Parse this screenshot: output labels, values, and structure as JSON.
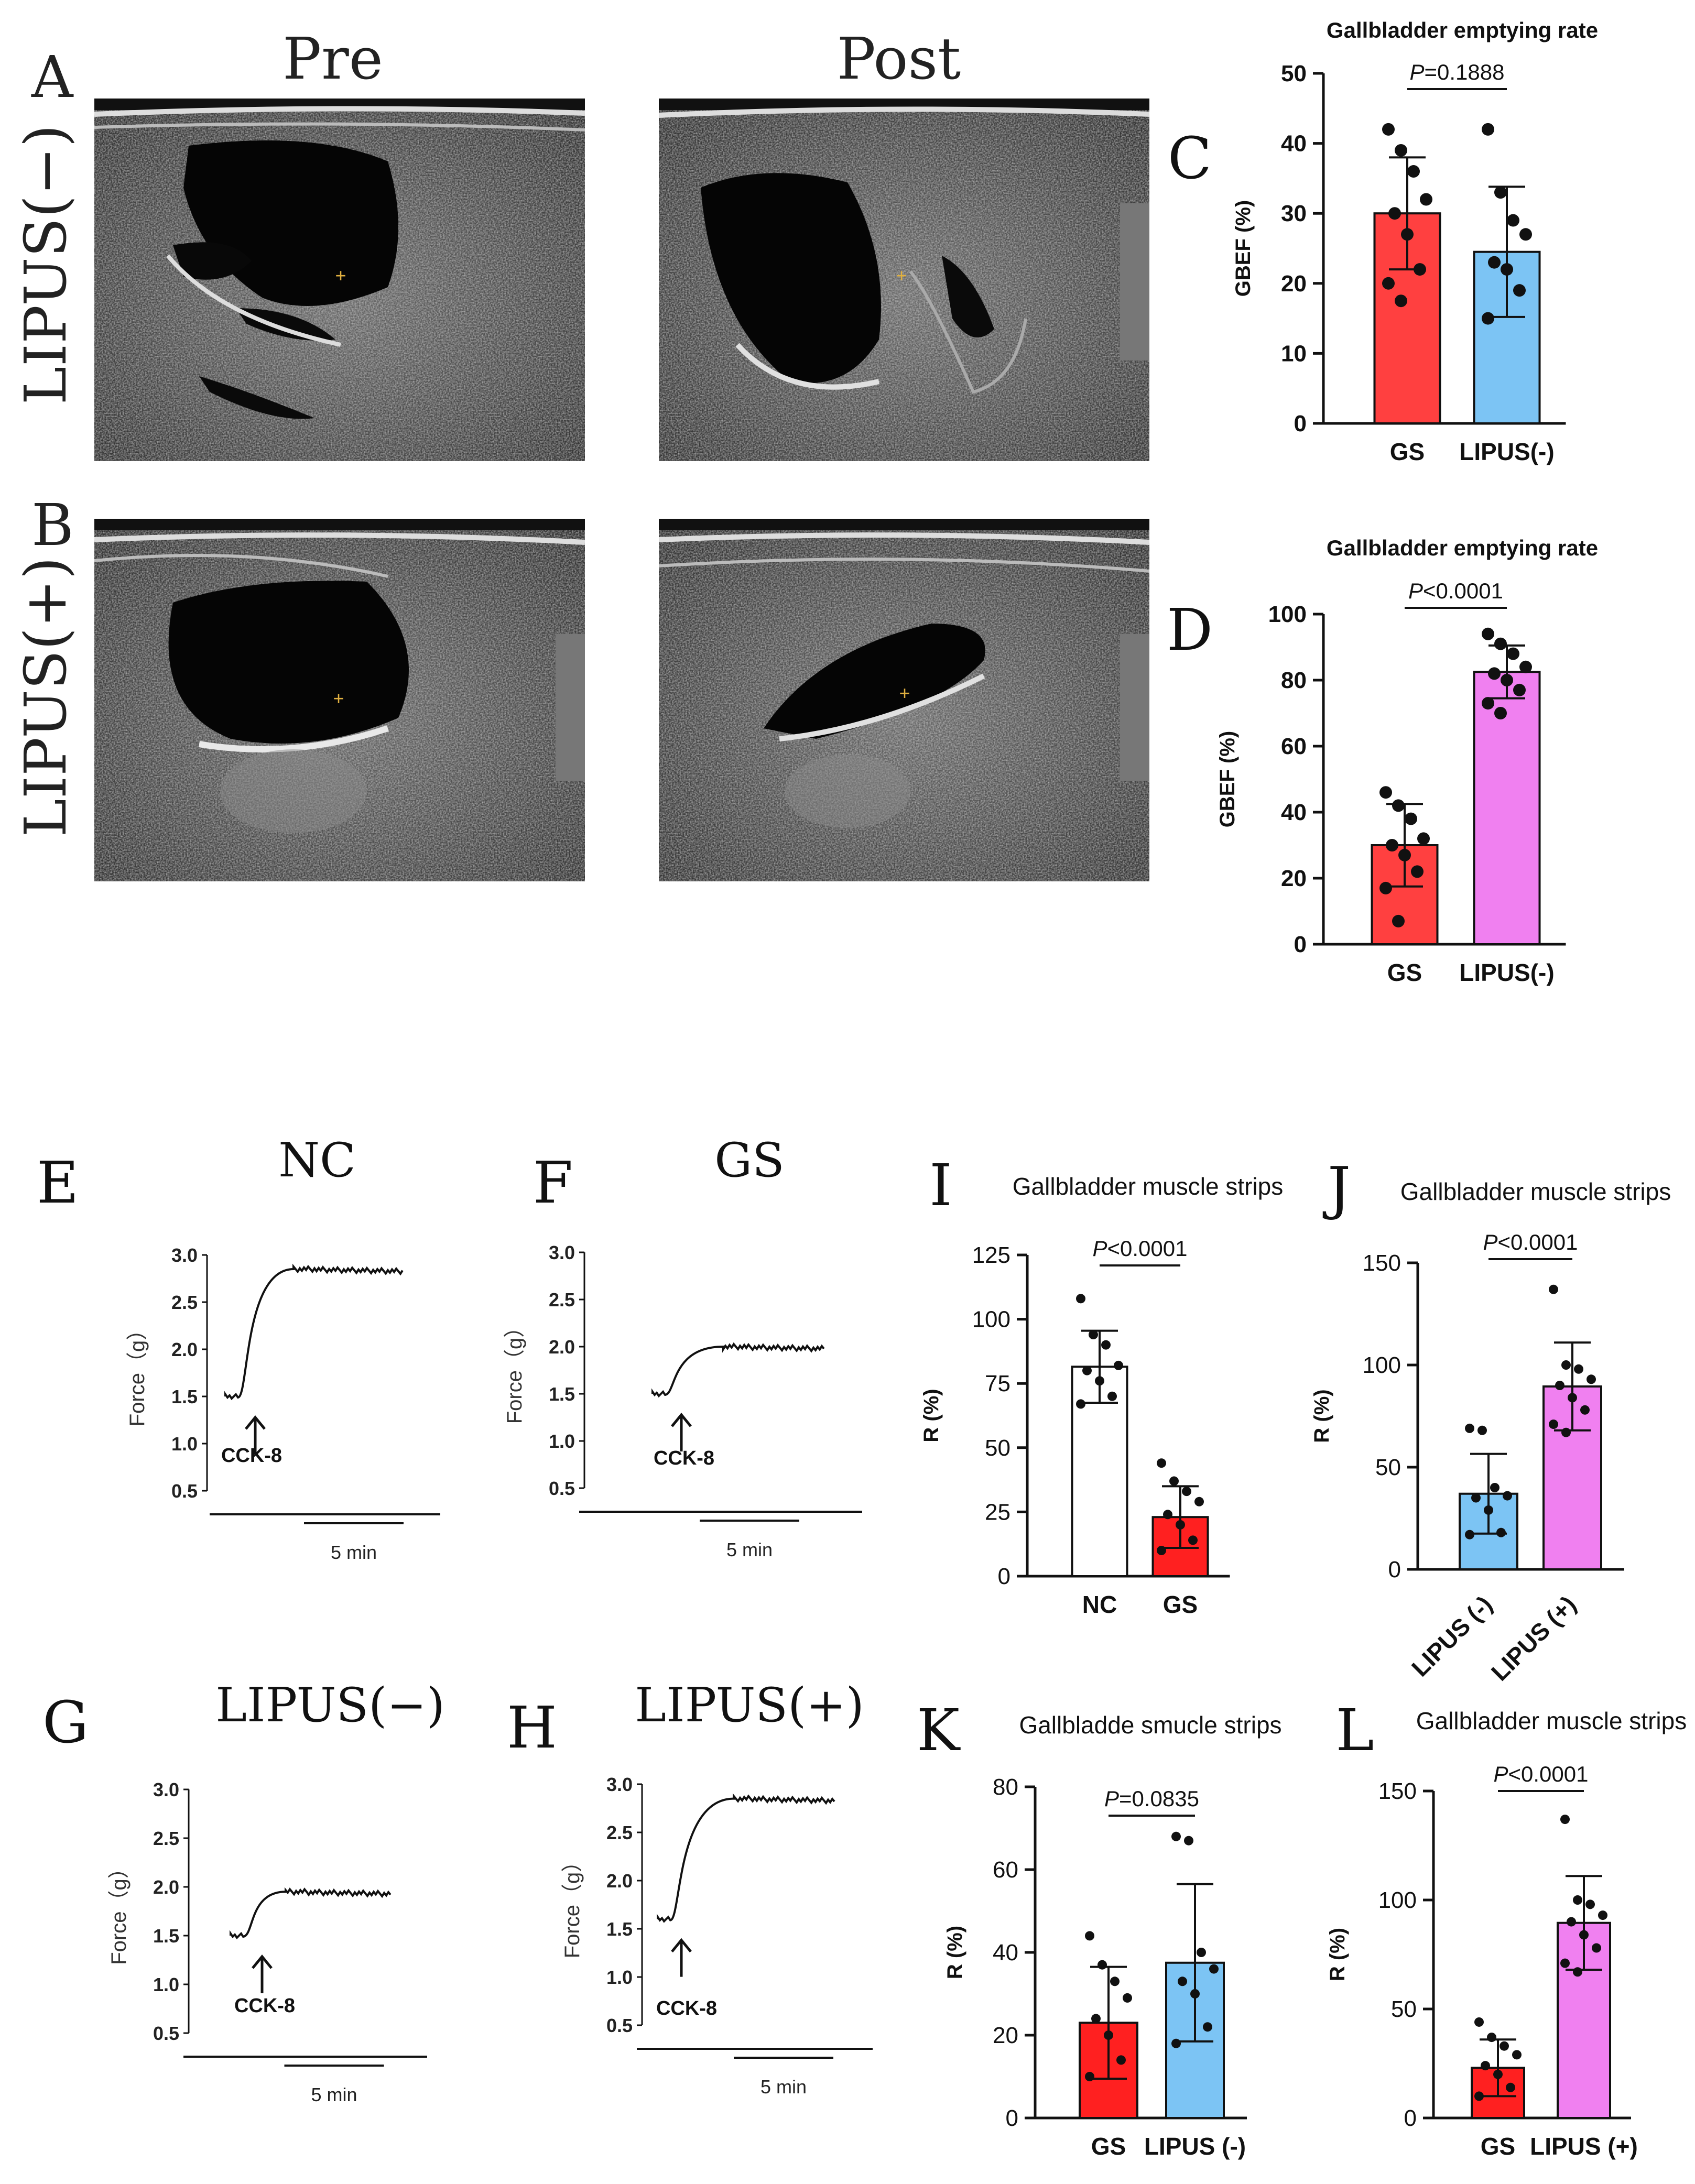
{
  "panel_labels": [
    "A",
    "B",
    "C",
    "D",
    "E",
    "F",
    "G",
    "H",
    "I",
    "J",
    "K",
    "L"
  ],
  "ultrasound": {
    "col_titles": [
      "Pre",
      "Post"
    ],
    "row_labels": [
      "LIPUS(−)",
      "LIPUS(+)"
    ],
    "marker": "+"
  },
  "traces": [
    {
      "id": "E",
      "title": "NC",
      "ylabel": "Force（g）",
      "yticks": [
        "3.0",
        "2.5",
        "2.0",
        "1.5",
        "1.0",
        "0.5"
      ],
      "stim": "CCK-8",
      "scale": "5 min",
      "baseline": 1.5,
      "plateau": 2.85
    },
    {
      "id": "F",
      "title": "GS",
      "ylabel": "Force（g）",
      "yticks": [
        "3.0",
        "2.5",
        "2.0",
        "1.5",
        "1.0",
        "0.5"
      ],
      "stim": "CCK-8",
      "scale": "5 min",
      "baseline": 1.5,
      "plateau": 2.0
    },
    {
      "id": "G",
      "title": "LIPUS(−)",
      "ylabel": "Force（g）",
      "yticks": [
        "3.0",
        "2.5",
        "2.0",
        "1.5",
        "1.0",
        "0.5"
      ],
      "stim": "CCK-8",
      "scale": "5 min",
      "baseline": 1.5,
      "plateau": 1.95
    },
    {
      "id": "H",
      "title": "LIPUS(+)",
      "ylabel": "Force（g）",
      "yticks": [
        "3.0",
        "2.5",
        "2.0",
        "1.5",
        "1.0",
        "0.5"
      ],
      "stim": "CCK-8",
      "scale": "5 min",
      "baseline": 1.6,
      "plateau": 2.85
    }
  ],
  "chart_data": [
    {
      "id": "C",
      "type": "bar",
      "title": "Gallbladder emptying rate",
      "ylabel": "GBEF (%)",
      "p_label": "P",
      "p_value": "=0.1888",
      "ylim": [
        0,
        50
      ],
      "yticks": [
        "0",
        "10",
        "20",
        "30",
        "40",
        "50"
      ],
      "categories": [
        "GS",
        "LIPUS(-)"
      ],
      "values": [
        30,
        24.5
      ],
      "sd": [
        8,
        9.3
      ],
      "colors": [
        "#ff4040",
        "#7cc4f4"
      ],
      "points": [
        [
          42,
          39,
          36,
          32,
          30,
          27,
          22,
          20,
          17.5
        ],
        [
          42,
          33,
          29,
          27,
          23,
          22,
          19,
          15
        ]
      ]
    },
    {
      "id": "D",
      "type": "bar",
      "title": "Gallbladder emptying rate",
      "ylabel": "GBEF (%)",
      "p_label": "P",
      "p_value": "<0.0001",
      "ylim": [
        0,
        100
      ],
      "yticks": [
        "0",
        "20",
        "40",
        "60",
        "80",
        "100"
      ],
      "categories": [
        "GS",
        "LIPUS(-)"
      ],
      "values": [
        30,
        82.5
      ],
      "sd": [
        12.5,
        8
      ],
      "colors": [
        "#ff4040",
        "#f080f0"
      ],
      "points": [
        [
          46,
          42,
          38,
          32,
          30,
          27,
          22,
          17,
          7
        ],
        [
          94,
          91,
          88,
          84,
          82,
          80,
          77,
          73,
          70
        ]
      ]
    },
    {
      "id": "I",
      "type": "bar",
      "title": "Gallbladder muscle strips",
      "ylabel": "R (%)",
      "p_label": "P",
      "p_value": "<0.0001",
      "ylim": [
        0,
        125
      ],
      "yticks": [
        "0",
        "25",
        "50",
        "75",
        "100",
        "125"
      ],
      "categories": [
        "NC",
        "GS"
      ],
      "values": [
        81.5,
        23
      ],
      "sd": [
        14,
        12
      ],
      "colors": [
        "#ffffff",
        "#ff2020"
      ],
      "points": [
        [
          108,
          94,
          90,
          82,
          80,
          76,
          70,
          67
        ],
        [
          44,
          37,
          33,
          29,
          24,
          20,
          14,
          10
        ]
      ]
    },
    {
      "id": "J",
      "type": "bar",
      "title": "Gallbladder muscle strips",
      "ylabel": "R (%)",
      "p_label": "P",
      "p_value": "<0.0001",
      "ylim": [
        0,
        150
      ],
      "yticks": [
        "0",
        "50",
        "100",
        "150"
      ],
      "categories": [
        "LIPUS (-)",
        "LIPUS (+)"
      ],
      "values": [
        37,
        89.5
      ],
      "sd": [
        19.5,
        21.5
      ],
      "colors": [
        "#7cc4f4",
        "#f080f0"
      ],
      "points": [
        [
          69,
          68,
          40,
          36,
          35,
          29,
          18,
          17
        ],
        [
          137,
          100,
          98,
          93,
          90,
          84,
          78,
          71,
          67
        ]
      ]
    },
    {
      "id": "K",
      "type": "bar",
      "title": "Gallbladde smucle strips",
      "ylabel": "R (%)",
      "p_label": "P",
      "p_value": "=0.0835",
      "ylim": [
        0,
        80
      ],
      "yticks": [
        "0",
        "20",
        "40",
        "60",
        "80"
      ],
      "categories": [
        "GS",
        "LIPUS (-)"
      ],
      "values": [
        23,
        37.5
      ],
      "sd": [
        13.5,
        19
      ],
      "colors": [
        "#ff2020",
        "#7cc4f4"
      ],
      "points": [
        [
          44,
          37,
          33,
          29,
          24,
          20,
          14,
          10
        ],
        [
          68,
          67,
          40,
          36,
          33,
          30,
          22,
          18
        ]
      ]
    },
    {
      "id": "L",
      "type": "bar",
      "title": "Gallbladder muscle strips",
      "ylabel": "R (%)",
      "p_label": "P",
      "p_value": "<0.0001",
      "ylim": [
        0,
        150
      ],
      "yticks": [
        "0",
        "50",
        "100",
        "150"
      ],
      "categories": [
        "GS",
        "LIPUS (+)"
      ],
      "values": [
        23,
        89.5
      ],
      "sd": [
        13,
        21.5
      ],
      "colors": [
        "#ff2020",
        "#f080f0"
      ],
      "points": [
        [
          44,
          37,
          33,
          29,
          24,
          20,
          14,
          10
        ],
        [
          137,
          100,
          98,
          93,
          90,
          84,
          78,
          71,
          67
        ]
      ]
    }
  ]
}
